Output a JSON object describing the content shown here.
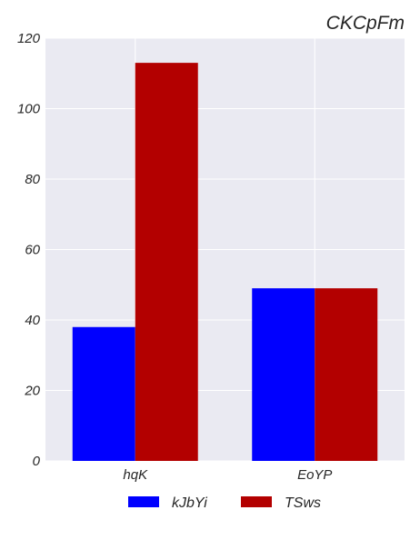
{
  "chart_data": {
    "type": "bar",
    "title": "CKCpFm",
    "categories": [
      "hqK",
      "EoYP"
    ],
    "series": [
      {
        "name": "kJbYi",
        "values": [
          38,
          49
        ],
        "color": "#0000ff"
      },
      {
        "name": "TSws",
        "values": [
          113,
          49
        ],
        "color": "#b30000"
      }
    ],
    "ylim": [
      0,
      120
    ],
    "yticks": [
      0,
      20,
      40,
      60,
      80,
      100,
      120
    ],
    "grid": true,
    "legend_position": "bottom-center",
    "colors": {
      "plot_background": "#eaeaf2",
      "grid": "#ffffff"
    }
  }
}
